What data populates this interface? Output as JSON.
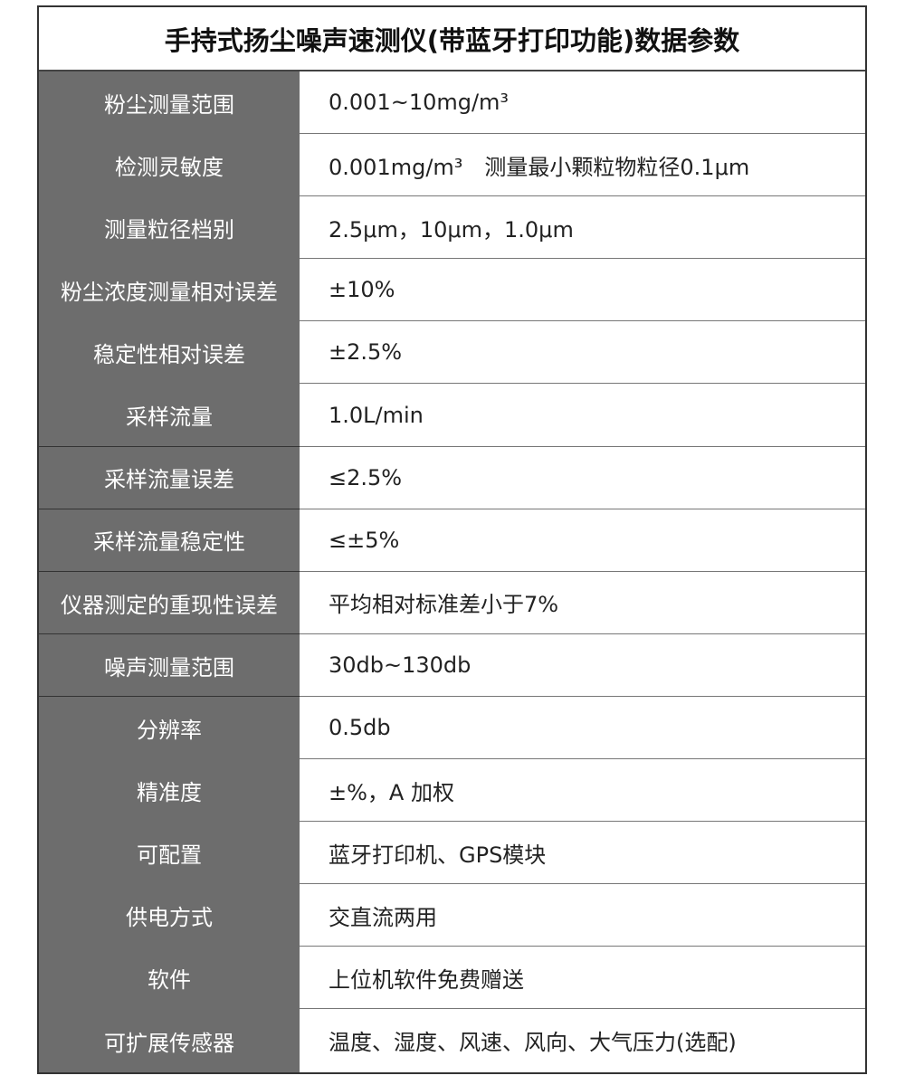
{
  "title": "手持式扬尘噪声速测仪(带蓝牙打印功能)数据参数",
  "rows": [
    {
      "label": "粉尘测量范围",
      "value": "0.001~10mg/m³"
    },
    {
      "label": "检测灵敏度",
      "value": "0.001mg/m³　测量最小颗粒物粒径0.1μm"
    },
    {
      "label": "测量粒径档别",
      "value": "2.5μm，10μm，1.0μm"
    },
    {
      "label": "粉尘浓度测量相对误差",
      "value": "±10%"
    },
    {
      "label": "稳定性相对误差",
      "value": "±2.5%"
    },
    {
      "label": "采样流量",
      "value": "1.0L/min"
    },
    {
      "label": "采样流量误差",
      "value": "≤2.5%"
    },
    {
      "label": "采样流量稳定性",
      "value": "≤±5%"
    },
    {
      "label": "仪器测定的重现性误差",
      "value": "平均相对标准差小于7%"
    },
    {
      "label": "噪声测量范围",
      "value": "30db~130db"
    },
    {
      "label": "分辨率",
      "value": "0.5db"
    },
    {
      "label": "精准度",
      "value": "±%，A 加权"
    },
    {
      "label": "可配置",
      "value": "蓝牙打印机、GPS模块"
    },
    {
      "label": "供电方式",
      "value": "交直流两用"
    },
    {
      "label": "软件",
      "value": "上位机软件免费赠送"
    },
    {
      "label": "可扩展传感器",
      "value": "温度、湿度、风速、风向、大气压力(选配)"
    }
  ]
}
